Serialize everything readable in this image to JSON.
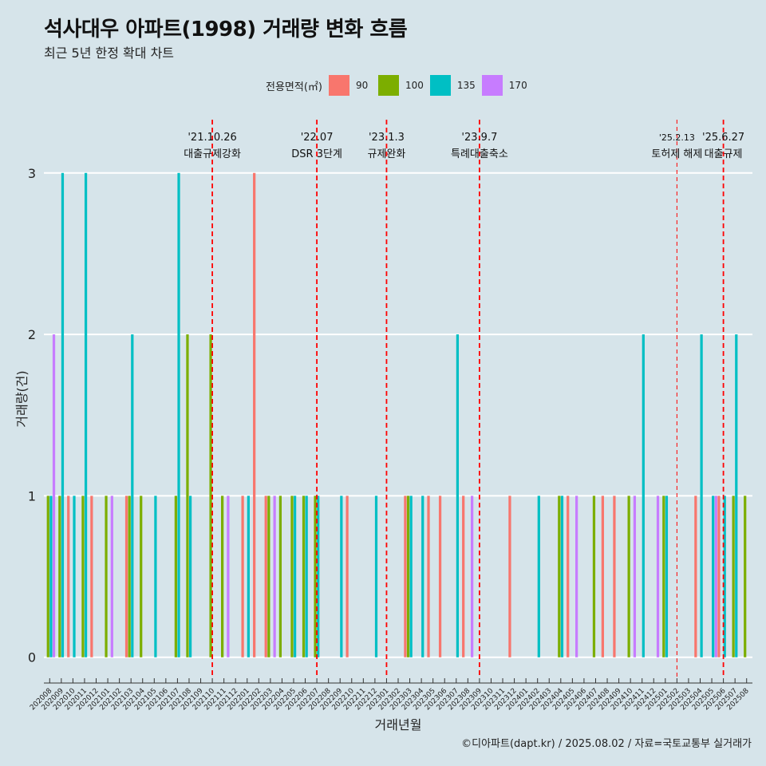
{
  "title": "석사대우 아파트(1998) 거래량 변화 흐름",
  "subtitle": "최근 5년 한정 확대 차트",
  "caption": "©디아파트(dapt.kr) / 2025.08.02 / 자료=국토교통부 실거래가",
  "chart_data": {
    "type": "bar",
    "xlabel": "거래년월",
    "ylabel": "거래량(건)",
    "ylim": [
      -0.12,
      3.33
    ],
    "yticks": [
      0,
      1,
      2,
      3
    ],
    "grid": true,
    "legend": {
      "title": "전용면적(㎡)",
      "placement": "top",
      "entries": [
        {
          "name": "90",
          "color": "#f8766d"
        },
        {
          "name": "100",
          "color": "#7cae00"
        },
        {
          "name": "135",
          "color": "#00bfc4"
        },
        {
          "name": "170",
          "color": "#c77cff"
        }
      ]
    },
    "categories": [
      "202008",
      "202009",
      "202010",
      "202011",
      "202012",
      "202101",
      "202102",
      "202103",
      "202104",
      "202105",
      "202106",
      "202107",
      "202108",
      "202109",
      "202110",
      "202111",
      "202112",
      "202201",
      "202202",
      "202203",
      "202204",
      "202205",
      "202206",
      "202207",
      "202208",
      "202209",
      "202210",
      "202211",
      "202212",
      "202301",
      "202302",
      "202303",
      "202304",
      "202305",
      "202306",
      "202307",
      "202308",
      "202309",
      "202310",
      "202311",
      "202312",
      "202401",
      "202402",
      "202403",
      "202404",
      "202405",
      "202406",
      "202407",
      "202408",
      "202409",
      "202410",
      "202411",
      "202412",
      "202501",
      "202502",
      "202503",
      "202504",
      "202505",
      "202506",
      "202507",
      "202508"
    ],
    "bars": [
      {
        "x": "202008",
        "values": [
          0,
          1,
          1,
          2
        ]
      },
      {
        "x": "202009",
        "values": [
          0,
          1,
          3,
          0
        ]
      },
      {
        "x": "202010",
        "values": [
          1,
          0,
          1,
          0
        ]
      },
      {
        "x": "202011",
        "values": [
          0,
          1,
          3,
          0
        ]
      },
      {
        "x": "202012",
        "values": [
          1,
          0,
          0,
          0
        ]
      },
      {
        "x": "202101",
        "values": [
          0,
          1,
          0,
          1
        ]
      },
      {
        "x": "202103",
        "values": [
          1,
          1,
          2,
          0
        ]
      },
      {
        "x": "202104",
        "values": [
          0,
          1,
          0,
          0
        ]
      },
      {
        "x": "202105",
        "values": [
          0,
          0,
          1,
          0
        ]
      },
      {
        "x": "202107",
        "values": [
          0,
          1,
          3,
          0
        ]
      },
      {
        "x": "202108",
        "values": [
          0,
          2,
          1,
          0
        ]
      },
      {
        "x": "202110",
        "values": [
          0,
          2,
          0,
          0
        ]
      },
      {
        "x": "202111",
        "values": [
          0,
          1,
          0,
          1
        ]
      },
      {
        "x": "202201",
        "values": [
          1,
          0,
          1,
          0
        ]
      },
      {
        "x": "202202",
        "values": [
          3,
          0,
          0,
          0
        ]
      },
      {
        "x": "202203",
        "values": [
          1,
          1,
          0,
          1
        ]
      },
      {
        "x": "202204",
        "values": [
          0,
          1,
          0,
          0
        ]
      },
      {
        "x": "202205",
        "values": [
          0,
          1,
          1,
          0
        ]
      },
      {
        "x": "202206",
        "values": [
          0,
          1,
          1,
          0
        ]
      },
      {
        "x": "202207",
        "values": [
          0,
          1,
          1,
          0
        ]
      },
      {
        "x": "202209",
        "values": [
          0,
          0,
          1,
          0
        ]
      },
      {
        "x": "202210",
        "values": [
          1,
          0,
          0,
          0
        ]
      },
      {
        "x": "202212",
        "values": [
          0,
          0,
          1,
          0
        ]
      },
      {
        "x": "202303",
        "values": [
          1,
          1,
          1,
          0
        ]
      },
      {
        "x": "202304",
        "values": [
          0,
          0,
          1,
          0
        ]
      },
      {
        "x": "202305",
        "values": [
          1,
          0,
          0,
          0
        ]
      },
      {
        "x": "202306",
        "values": [
          1,
          0,
          0,
          0
        ]
      },
      {
        "x": "202307",
        "values": [
          0,
          0,
          2,
          0
        ]
      },
      {
        "x": "202308",
        "values": [
          1,
          0,
          0,
          1
        ]
      },
      {
        "x": "202312",
        "values": [
          1,
          0,
          0,
          0
        ]
      },
      {
        "x": "202402",
        "values": [
          0,
          0,
          1,
          0
        ]
      },
      {
        "x": "202404",
        "values": [
          0,
          1,
          1,
          0
        ]
      },
      {
        "x": "202405",
        "values": [
          1,
          0,
          0,
          1
        ]
      },
      {
        "x": "202407",
        "values": [
          0,
          1,
          0,
          0
        ]
      },
      {
        "x": "202408",
        "values": [
          1,
          0,
          0,
          0
        ]
      },
      {
        "x": "202409",
        "values": [
          1,
          0,
          0,
          0
        ]
      },
      {
        "x": "202410",
        "values": [
          0,
          1,
          0,
          1
        ]
      },
      {
        "x": "202411",
        "values": [
          0,
          0,
          2,
          0
        ]
      },
      {
        "x": "202412",
        "values": [
          0,
          0,
          0,
          1
        ]
      },
      {
        "x": "202501",
        "values": [
          0,
          1,
          1,
          0
        ]
      },
      {
        "x": "202504",
        "values": [
          1,
          0,
          2,
          0
        ]
      },
      {
        "x": "202505",
        "values": [
          0,
          0,
          1,
          1
        ]
      },
      {
        "x": "202506",
        "values": [
          1,
          0,
          1,
          0
        ]
      },
      {
        "x": "202507",
        "values": [
          0,
          1,
          2,
          0
        ]
      },
      {
        "x": "202508",
        "values": [
          0,
          1,
          0,
          0
        ]
      }
    ],
    "annotations": [
      {
        "x": "202110",
        "date": "'21.10.26",
        "label": "대출규제강화",
        "style": "thick"
      },
      {
        "x": "202207",
        "date": "'22.07",
        "label": "DSR 3단계",
        "style": "thick"
      },
      {
        "x": "202301",
        "date": "'23.1.3",
        "label": "규제완화",
        "style": "thick"
      },
      {
        "x": "202309",
        "date": "'23.9.7",
        "label": "특례대출축소",
        "style": "thick"
      },
      {
        "x": "202502",
        "date": "'25.2.13",
        "label": "토허제 해제",
        "style": "thin"
      },
      {
        "x": "202506",
        "date": "'25.6.27",
        "label": "대출규제",
        "style": "thick"
      }
    ]
  }
}
